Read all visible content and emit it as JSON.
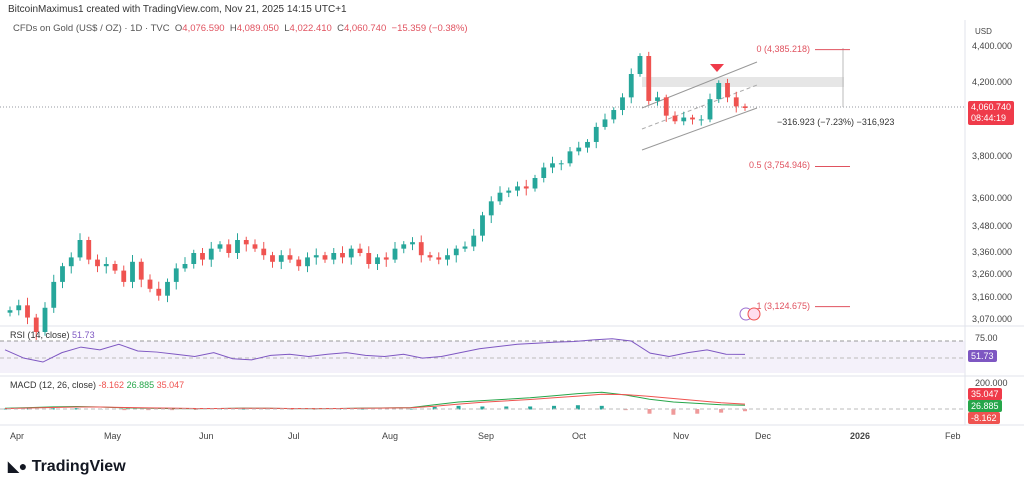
{
  "header": {
    "credit": "BitcoinMaximus1 created with TradingView.com, Nov 21, 2025 14:15 UTC+1",
    "symbol": "CFDs on Gold (US$ / OZ) · 1D · TVC",
    "o_label": "O",
    "o": "4,076.590",
    "h_label": "H",
    "h": "4,089.050",
    "l_label": "L",
    "l": "4,022.410",
    "c_label": "C",
    "c": "4,060.740",
    "change": "−15.359 (−0.38%)"
  },
  "colors": {
    "up": "#26a69a",
    "down": "#ef5350",
    "rsi": "#7e57c2",
    "fib": "#e0525f"
  },
  "chart_data": [
    {
      "type": "candlestick",
      "currency": "USD",
      "y_ticks": [
        "4,400.000",
        "4,200.000",
        "3,800.000",
        "3,600.000",
        "3,480.000",
        "3,360.000",
        "3,260.000",
        "3,160.000",
        "3,070.000"
      ],
      "y_tick_values": [
        4400,
        4200,
        3800,
        3600,
        3480,
        3360,
        3260,
        3160,
        3070
      ],
      "x_ticks": [
        "Apr",
        "May",
        "Jun",
        "Jul",
        "Aug",
        "Sep",
        "Oct",
        "Nov",
        "Dec",
        "2026",
        "Feb"
      ],
      "closes": [
        3110,
        3130,
        3080,
        3020,
        3120,
        3230,
        3300,
        3340,
        3420,
        3330,
        3300,
        3310,
        3280,
        3230,
        3320,
        3240,
        3200,
        3170,
        3230,
        3290,
        3310,
        3360,
        3330,
        3380,
        3400,
        3360,
        3420,
        3400,
        3380,
        3350,
        3320,
        3350,
        3330,
        3300,
        3340,
        3350,
        3330,
        3360,
        3340,
        3380,
        3360,
        3310,
        3340,
        3330,
        3380,
        3400,
        3410,
        3350,
        3340,
        3330,
        3350,
        3380,
        3390,
        3440,
        3530,
        3590,
        3630,
        3640,
        3660,
        3650,
        3700,
        3750,
        3770,
        3770,
        3830,
        3850,
        3880,
        3960,
        4000,
        4050,
        4120,
        4250,
        4350,
        4100,
        4120,
        4020,
        3990,
        4010,
        4000,
        4000,
        4110,
        4200,
        4120,
        4070,
        4060.74
      ],
      "last_price": "4,060.740",
      "countdown": "08:44:19",
      "fib_levels": [
        {
          "label": "0 (4,385.218)",
          "value": 4385.218
        },
        {
          "label": "0.5 (3,754.946)",
          "value": 3754.946
        },
        {
          "label": "1 (3,124.675)",
          "value": 3124.675
        }
      ],
      "measure_label": "−316.923 (−7.23%) −316,923"
    },
    {
      "type": "line",
      "title": "RSI (14, close)",
      "value": "51.73",
      "tick": "75.00",
      "values": [
        60,
        45,
        38,
        55,
        65,
        60,
        70,
        58,
        56,
        52,
        48,
        55,
        44,
        42,
        50,
        52,
        48,
        52,
        55,
        50,
        48,
        52,
        45,
        48,
        55,
        62,
        66,
        70,
        72,
        74,
        75,
        78,
        80,
        76,
        54,
        48,
        55,
        60,
        52,
        51.73
      ]
    },
    {
      "type": "macd",
      "title": "MACD (12, 26, close)",
      "histogram": "-8.162",
      "macd": "26.885",
      "signal": "35.047",
      "tick": "200.000",
      "macd_values": [
        5,
        10,
        15,
        18,
        14,
        8,
        5,
        3,
        2,
        4,
        6,
        5,
        3,
        2,
        4,
        6,
        8,
        10,
        30,
        50,
        60,
        70,
        80,
        95,
        110,
        120,
        100,
        70,
        50,
        40,
        30,
        26.885
      ],
      "signal_values": [
        3,
        7,
        11,
        14,
        14,
        11,
        8,
        6,
        4,
        4,
        5,
        5,
        4,
        3,
        4,
        5,
        7,
        9,
        20,
        35,
        48,
        58,
        68,
        80,
        92,
        105,
        103,
        90,
        75,
        60,
        45,
        35.047
      ]
    }
  ],
  "footer": {
    "logo": "TradingView"
  }
}
